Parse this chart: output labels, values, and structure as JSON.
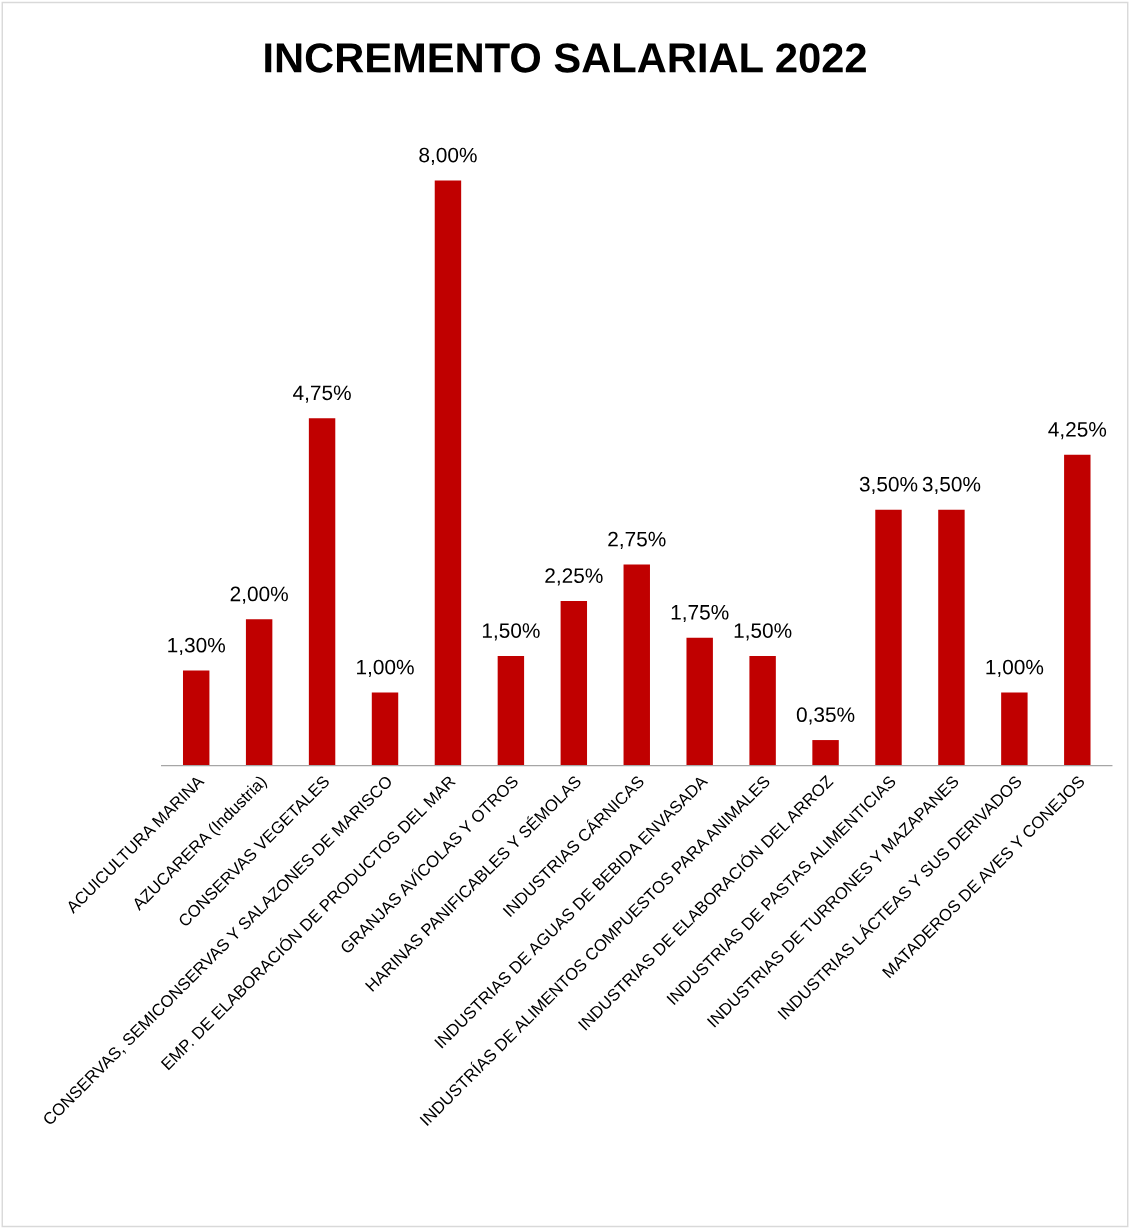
{
  "chart_data": {
    "type": "bar",
    "title": "INCREMENTO SALARIAL 2022",
    "categories": [
      "ACUICULTURA MARINA",
      "AZUCARERA (Industria)",
      "CONSERVAS VEGETALES",
      "CONSERVAS, SEMICONSERVAS Y SALAZONES DE MARISCO",
      "EMP. DE ELABORACIÓN DE PRODUCTOS DEL MAR",
      "GRANJAS AVÍCOLAS Y OTROS",
      "HARINAS PANIFICABLES Y SÉMOLAS",
      "INDUSTRIAS CÁRNICAS",
      "INDUSTRIAS DE AGUAS DE BEBIDA ENVASADA",
      "INDUSTRÍAS DE ALIMENTOS COMPUESTOS PARA ANIMALES",
      "INDUSTRIAS DE ELABORACIÓN DEL ARROZ",
      "INDUSTRIAS DE PASTAS ALIMENTICIAS",
      "INDUSTRIAS DE TURRONES Y MAZAPANES",
      "INDUSTRIAS LÁCTEAS Y SUS DERIVADOS",
      "MATADEROS DE AVES Y CONEJOS"
    ],
    "values": [
      1.3,
      2.0,
      4.75,
      1.0,
      8.0,
      1.5,
      2.25,
      2.75,
      1.75,
      1.5,
      0.35,
      3.5,
      3.5,
      1.0,
      4.25
    ],
    "value_labels": [
      "1,30%",
      "2,00%",
      "4,75%",
      "1,00%",
      "8,00%",
      "1,50%",
      "2,25%",
      "2,75%",
      "1,75%",
      "1,50%",
      "0,35%",
      "3,50%",
      "3,50%",
      "1,00%",
      "4,25%"
    ],
    "color": "#c00000",
    "grid": false,
    "legend": false,
    "tick_labels": "x"
  }
}
